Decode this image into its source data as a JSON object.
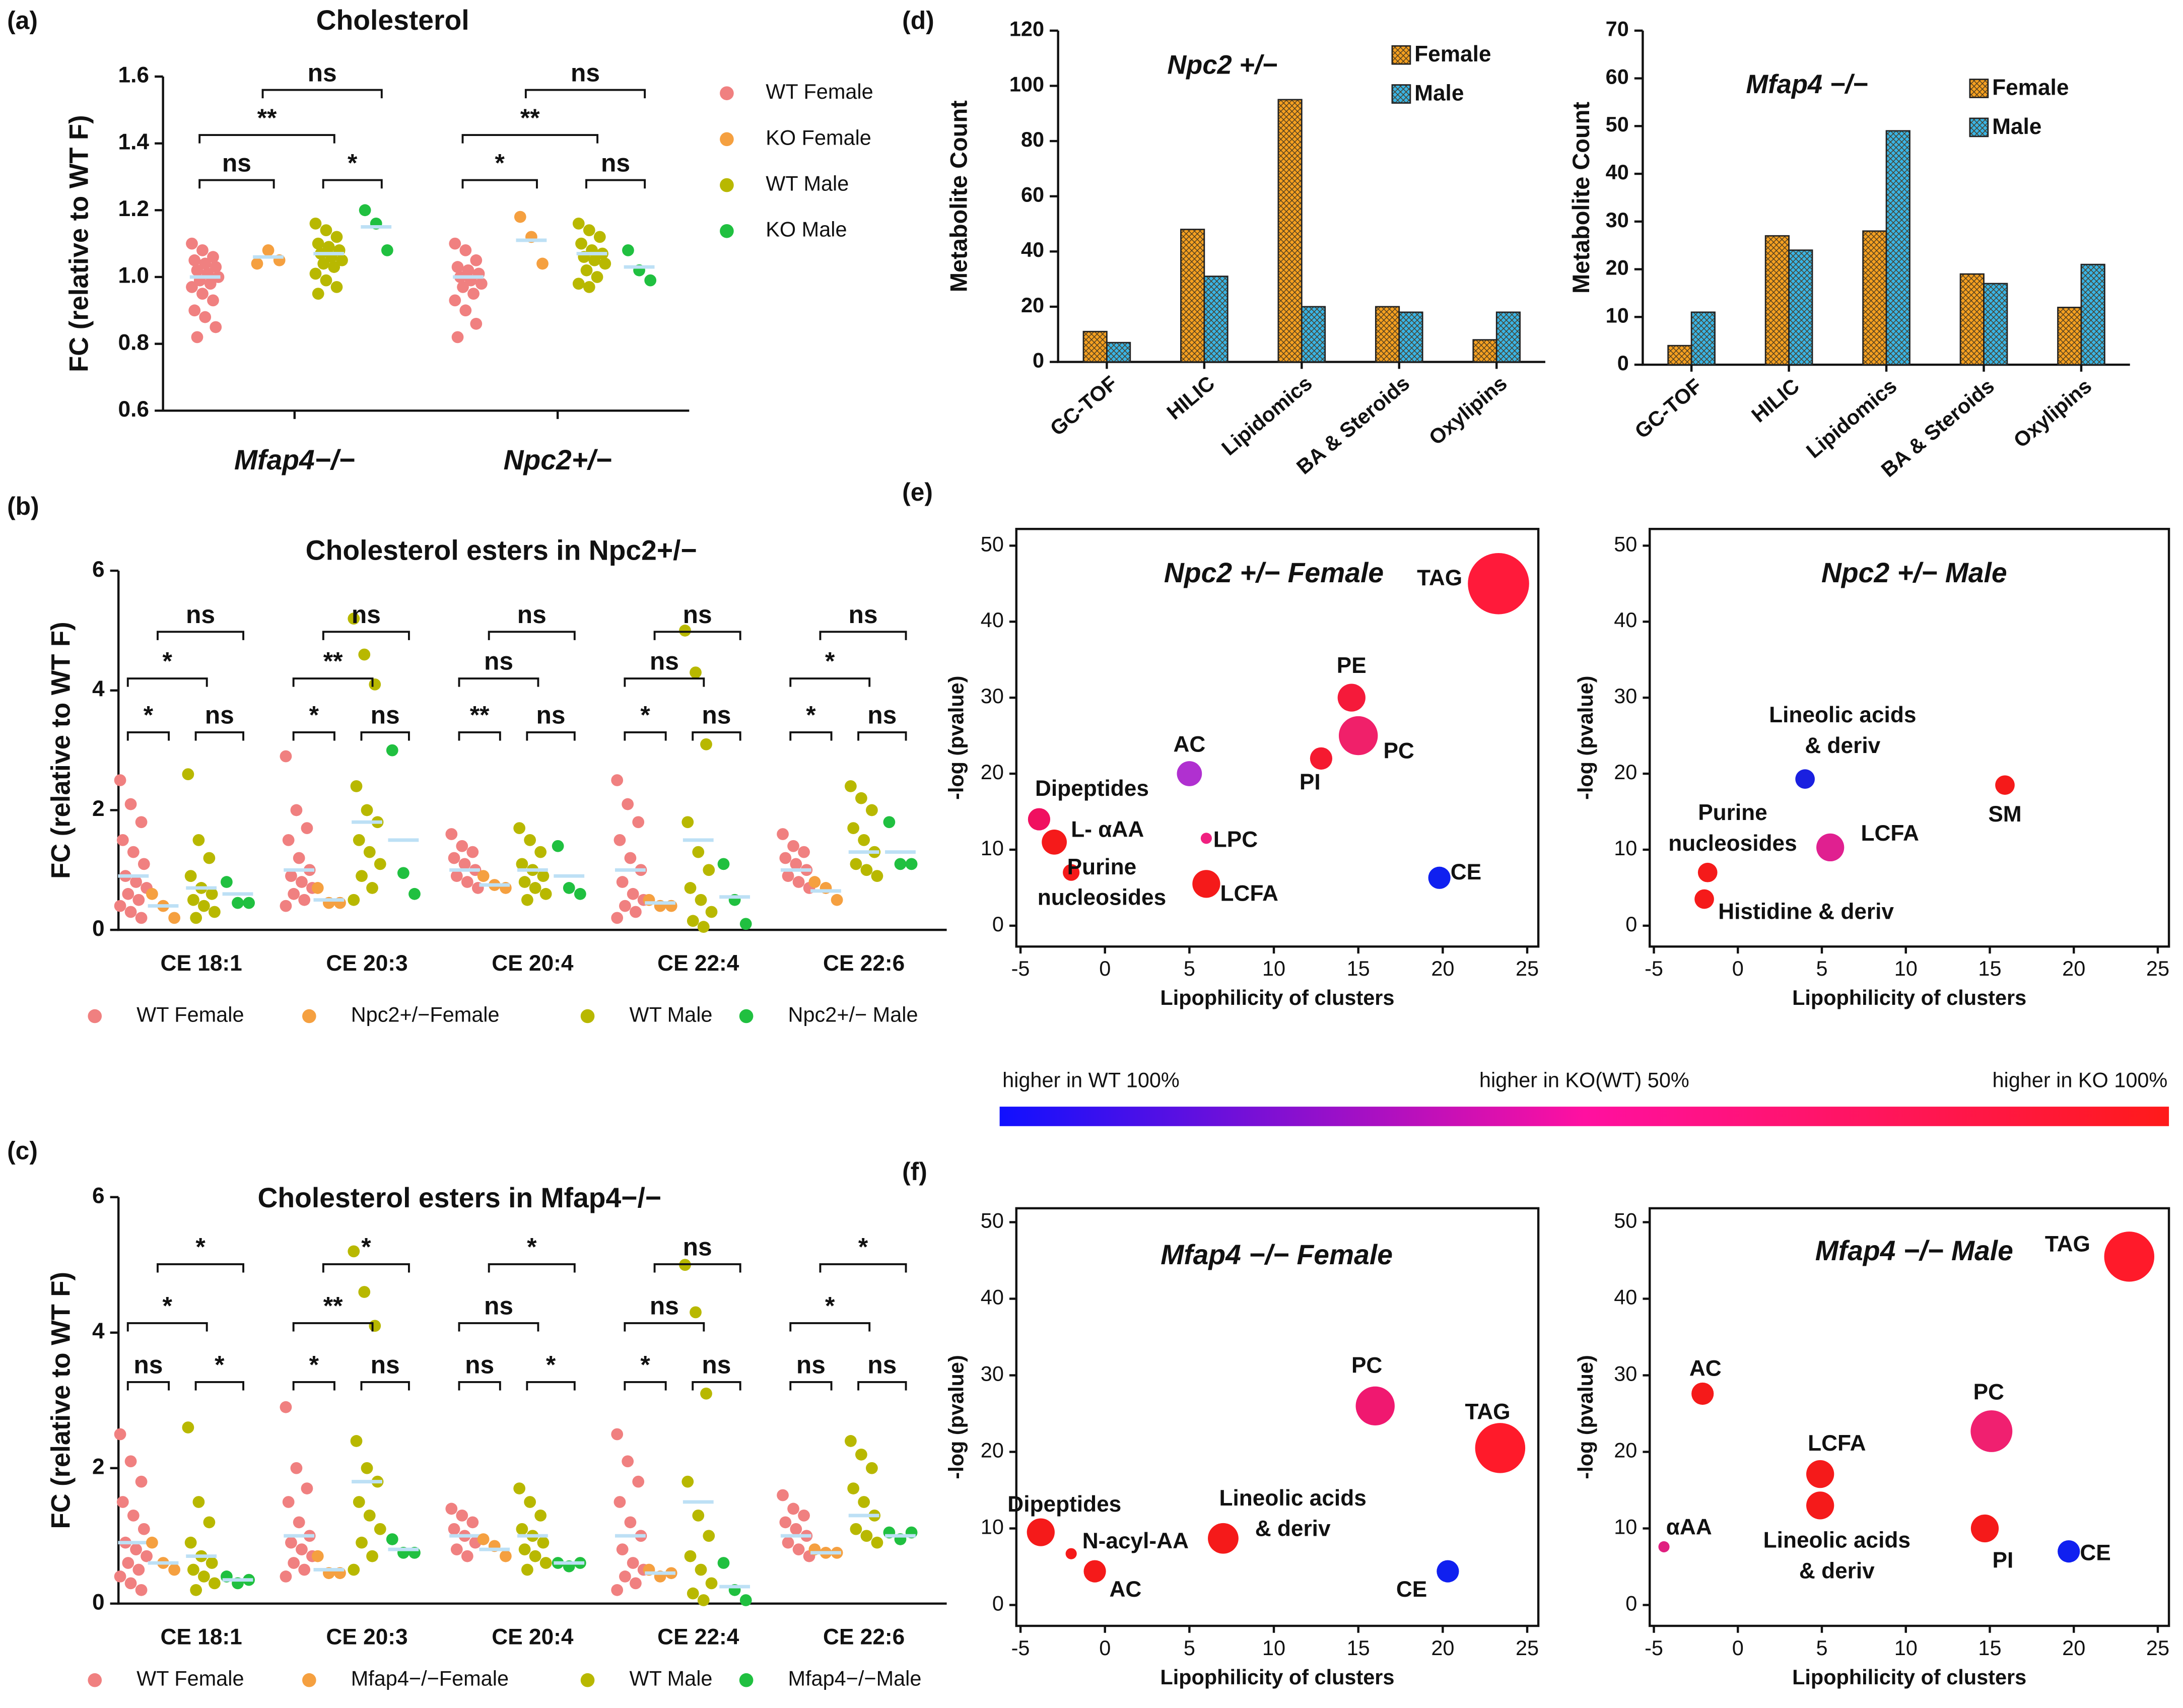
{
  "chart_data": [
    {
      "type": "strip",
      "panel": "(a)",
      "title": "Cholesterol",
      "ylabel": "FC (relative to WT F)",
      "categories": [
        "Mfap4−/−",
        "Npc2+/−"
      ],
      "ylim": [
        0.6,
        1.6
      ],
      "yticks": [
        0.6,
        0.8,
        {
          "value": 1,
          "label": "1.0"
        },
        1.2,
        1.4,
        1.6
      ],
      "series": [
        {
          "name": "WT Female",
          "color": "#f08080",
          "values": [
            [
              1.1,
              1.08,
              1.06,
              1.05,
              1.04,
              1.03,
              1.02,
              1.01,
              1.0,
              0.99,
              0.98,
              0.97,
              0.95,
              0.93,
              0.9,
              0.88,
              0.85,
              0.82
            ],
            [
              1.1,
              1.08,
              1.05,
              1.03,
              1.02,
              1.01,
              1.0,
              0.99,
              0.98,
              0.97,
              0.95,
              0.93,
              0.9,
              0.86,
              0.82
            ]
          ],
          "means": [
            1.0,
            1.0
          ]
        },
        {
          "name": "KO Female",
          "color": "#f5a040",
          "values": [
            [
              1.04,
              1.08,
              1.05
            ],
            [
              1.18,
              1.12,
              1.04
            ]
          ],
          "means": [
            1.06,
            1.11
          ]
        },
        {
          "name": "WT Male",
          "color": "#b8b800",
          "values": [
            [
              1.16,
              1.14,
              1.12,
              1.1,
              1.09,
              1.08,
              1.07,
              1.06,
              1.05,
              1.04,
              1.03,
              1.01,
              0.99,
              0.97,
              0.95
            ],
            [
              1.16,
              1.14,
              1.12,
              1.1,
              1.08,
              1.07,
              1.06,
              1.05,
              1.04,
              1.02,
              1.0,
              0.98,
              0.97
            ]
          ],
          "means": [
            1.07,
            1.07
          ]
        },
        {
          "name": "KO Male",
          "color": "#20c040",
          "values": [
            [
              1.2,
              1.16,
              1.08
            ],
            [
              1.08,
              1.02,
              0.99
            ]
          ],
          "means": [
            1.15,
            1.03
          ]
        }
      ],
      "annotations": [
        [
          "ns",
          "*",
          "**",
          "ns"
        ],
        [
          "*",
          "ns",
          "**",
          "ns"
        ]
      ]
    },
    {
      "type": "strip",
      "panel": "(b)",
      "title": "Cholesterol esters in Npc2+/−",
      "ylabel": "FC (relative to WT F)",
      "categories": [
        "CE 18:1",
        "CE 20:3",
        "CE 20:4",
        "CE 22:4",
        "CE 22:6"
      ],
      "ylim": [
        0,
        6
      ],
      "yticks": [
        0,
        2,
        4,
        6
      ],
      "series": [
        {
          "name": "WT Female",
          "color": "#f08080",
          "values": [
            [
              2.5,
              2.1,
              1.8,
              1.5,
              1.3,
              1.1,
              0.9,
              0.8,
              0.7,
              0.6,
              0.5,
              0.4,
              0.3,
              0.2
            ],
            [
              2.9,
              2.0,
              1.7,
              1.5,
              1.2,
              1.0,
              0.9,
              0.8,
              0.7,
              0.6,
              0.5,
              0.4
            ],
            [
              1.6,
              1.4,
              1.3,
              1.2,
              1.1,
              1.0,
              0.9,
              0.8,
              0.7
            ],
            [
              2.5,
              2.1,
              1.8,
              1.5,
              1.2,
              1.0,
              0.8,
              0.6,
              0.5,
              0.4,
              0.3,
              0.2
            ],
            [
              1.6,
              1.4,
              1.3,
              1.2,
              1.1,
              1.0,
              0.9,
              0.8,
              0.7
            ]
          ],
          "means": [
            0.9,
            1.0,
            1.0,
            1.0,
            1.0
          ]
        },
        {
          "name": "Npc2+/−Female",
          "color": "#f5a040",
          "values": [
            [
              0.6,
              0.4,
              0.2
            ],
            [
              0.7,
              0.45,
              0.45
            ],
            [
              0.9,
              0.75,
              0.7
            ],
            [
              0.5,
              0.4,
              0.4
            ],
            [
              0.8,
              0.7,
              0.5
            ]
          ],
          "means": [
            0.4,
            0.5,
            0.75,
            0.45,
            0.65
          ]
        },
        {
          "name": "WT Male",
          "color": "#b8b800",
          "values": [
            [
              2.6,
              1.5,
              1.2,
              0.9,
              0.7,
              0.6,
              0.5,
              0.4,
              0.3,
              0.2
            ],
            [
              5.2,
              4.6,
              4.1,
              2.4,
              2.0,
              1.8,
              1.5,
              1.3,
              1.1,
              0.9,
              0.7,
              0.5
            ],
            [
              1.7,
              1.5,
              1.3,
              1.1,
              1.0,
              0.9,
              0.8,
              0.7,
              0.6,
              0.5
            ],
            [
              5.0,
              4.3,
              3.1,
              1.8,
              1.3,
              1.0,
              0.7,
              0.5,
              0.3,
              0.15,
              0.05
            ],
            [
              2.4,
              2.2,
              2.0,
              1.7,
              1.5,
              1.3,
              1.1,
              1.0,
              0.9
            ]
          ],
          "means": [
            0.7,
            1.8,
            1.0,
            1.5,
            1.3
          ]
        },
        {
          "name": "Npc2+/− Male",
          "color": "#20c040",
          "values": [
            [
              0.8,
              0.45,
              0.45
            ],
            [
              3.0,
              0.95,
              0.6
            ],
            [
              1.4,
              0.7,
              0.6
            ],
            [
              1.1,
              0.5,
              0.1
            ],
            [
              1.8,
              1.1,
              1.1
            ]
          ],
          "means": [
            0.6,
            1.5,
            0.9,
            0.55,
            1.3
          ]
        }
      ],
      "annotations": [
        [
          "*",
          "ns",
          "*",
          "ns"
        ],
        [
          "*",
          "ns",
          "**",
          "ns"
        ],
        [
          "**",
          "ns",
          "ns",
          "ns"
        ],
        [
          "*",
          "ns",
          "ns",
          "ns"
        ],
        [
          "*",
          "ns",
          "*",
          "ns"
        ]
      ]
    },
    {
      "type": "strip",
      "panel": "(c)",
      "title": "Cholesterol esters in Mfap4−/−",
      "ylabel": "FC (relative to WT F)",
      "categories": [
        "CE 18:1",
        "CE 20:3",
        "CE 20:4",
        "CE 22:4",
        "CE 22:6"
      ],
      "ylim": [
        0,
        6
      ],
      "yticks": [
        0,
        2,
        4,
        6
      ],
      "series": [
        {
          "name": "WT Female",
          "color": "#f08080",
          "values": [
            [
              2.5,
              2.1,
              1.8,
              1.5,
              1.3,
              1.1,
              0.9,
              0.8,
              0.7,
              0.6,
              0.5,
              0.4,
              0.3,
              0.2
            ],
            [
              2.9,
              2.0,
              1.7,
              1.5,
              1.2,
              1.0,
              0.9,
              0.8,
              0.7,
              0.6,
              0.5,
              0.4
            ],
            [
              1.4,
              1.3,
              1.2,
              1.1,
              1.0,
              0.9,
              0.8,
              0.7
            ],
            [
              2.5,
              2.1,
              1.8,
              1.5,
              1.2,
              1.0,
              0.8,
              0.6,
              0.5,
              0.4,
              0.3,
              0.2
            ],
            [
              1.6,
              1.4,
              1.3,
              1.2,
              1.1,
              1.0,
              0.9,
              0.8,
              0.7
            ]
          ],
          "means": [
            0.9,
            1.0,
            1.0,
            1.0,
            1.0
          ]
        },
        {
          "name": "Mfap4−/−Female",
          "color": "#f5a040",
          "values": [
            [
              0.9,
              0.6,
              0.5
            ],
            [
              0.7,
              0.45,
              0.45
            ],
            [
              0.95,
              0.85,
              0.7
            ],
            [
              0.5,
              0.4,
              0.45
            ],
            [
              0.8,
              0.75,
              0.75
            ]
          ],
          "means": [
            0.6,
            0.5,
            0.8,
            0.45,
            0.75
          ]
        },
        {
          "name": "WT Male",
          "color": "#b8b800",
          "values": [
            [
              2.6,
              1.5,
              1.2,
              0.9,
              0.7,
              0.6,
              0.5,
              0.4,
              0.3,
              0.2
            ],
            [
              5.2,
              4.6,
              4.1,
              2.4,
              2.0,
              1.8,
              1.5,
              1.3,
              1.1,
              0.9,
              0.7,
              0.5
            ],
            [
              1.7,
              1.5,
              1.3,
              1.1,
              1.0,
              0.9,
              0.8,
              0.7,
              0.6,
              0.5
            ],
            [
              5.0,
              4.3,
              3.1,
              1.8,
              1.3,
              1.0,
              0.7,
              0.5,
              0.3,
              0.15,
              0.05
            ],
            [
              2.4,
              2.2,
              2.0,
              1.7,
              1.5,
              1.3,
              1.1,
              1.0,
              0.9
            ]
          ],
          "means": [
            0.7,
            1.8,
            1.0,
            1.5,
            1.3
          ]
        },
        {
          "name": "Mfap4−/−Male",
          "color": "#20c040",
          "values": [
            [
              0.4,
              0.3,
              0.35
            ],
            [
              0.95,
              0.75,
              0.75
            ],
            [
              0.6,
              0.55,
              0.6
            ],
            [
              0.6,
              0.2,
              0.05
            ],
            [
              1.05,
              0.95,
              1.05
            ]
          ],
          "means": [
            0.35,
            0.8,
            0.6,
            0.25,
            1.0
          ]
        }
      ],
      "annotations": [
        [
          "ns",
          "*",
          "*",
          "*"
        ],
        [
          "*",
          "ns",
          "**",
          "*"
        ],
        [
          "ns",
          "*",
          "ns",
          "*"
        ],
        [
          "*",
          "ns",
          "ns",
          "ns"
        ],
        [
          "ns",
          "ns",
          "*",
          "*"
        ]
      ]
    },
    {
      "type": "bar",
      "panel": "(d)",
      "title": "Npc2 +/−",
      "ylabel": "Metabolite Count",
      "categories": [
        "GC-TOF",
        "HILIC",
        "Lipidomics",
        "BA & Steroids",
        "Oxylipins"
      ],
      "ylim": [
        0,
        120
      ],
      "yticks": [
        0,
        20,
        40,
        60,
        80,
        100,
        120
      ],
      "series": [
        {
          "name": "Female",
          "color": "#f5a020",
          "values": [
            11,
            48,
            95,
            20,
            8
          ]
        },
        {
          "name": "Male",
          "color": "#38b4e6",
          "values": [
            7,
            31,
            20,
            18,
            18
          ]
        }
      ]
    },
    {
      "type": "bar",
      "title": "Mfap4 −/−",
      "ylabel": "Metabolite Count",
      "categories": [
        "GC-TOF",
        "HILIC",
        "Lipidomics",
        "BA & Steroids",
        "Oxylipins"
      ],
      "ylim": [
        0,
        70
      ],
      "yticks": [
        0,
        10,
        20,
        30,
        40,
        50,
        60,
        70
      ],
      "series": [
        {
          "name": "Female",
          "color": "#f5a020",
          "values": [
            4,
            27,
            28,
            19,
            12
          ]
        },
        {
          "name": "Male",
          "color": "#38b4e6",
          "values": [
            11,
            24,
            49,
            17,
            21
          ]
        }
      ]
    },
    {
      "type": "bubble",
      "panel": "(e)",
      "title": "Npc2 +/− Female",
      "xlabel": "Lipophilicity of clusters",
      "ylabel": "-log (pvalue)",
      "xlim": [
        -5,
        25
      ],
      "ylim": [
        0,
        50
      ],
      "xticks": [
        -5,
        0,
        5,
        10,
        15,
        20,
        25
      ],
      "yticks": [
        0,
        10,
        20,
        30,
        40,
        50
      ],
      "labels": [
        "TAG",
        "PE",
        "PC",
        "PI",
        "AC",
        "Dipeptides",
        "L- αAA",
        "LPC",
        [
          "Purine",
          "nucleosides"
        ],
        "LCFA",
        "CE"
      ],
      "x": [
        23.3,
        14.6,
        15,
        12.8,
        5,
        -3.9,
        -3,
        6,
        -2,
        6,
        19.8
      ],
      "y": [
        45,
        30,
        25,
        22,
        20,
        14,
        11,
        11.5,
        7,
        5.5,
        6.3
      ],
      "sizes": [
        22,
        10,
        14,
        8,
        9,
        8,
        9,
        4,
        6,
        10,
        8
      ],
      "colors": [
        "#ff1a3a",
        "#f51a3a",
        "#f0206a",
        "#f51a30",
        "#b030d0",
        "#f01060",
        "#f51a1a",
        "#f02080",
        "#f51a1a",
        "#f51a1a",
        "#1020f0"
      ]
    },
    {
      "type": "bubble",
      "title": "Npc2 +/− Male",
      "xlabel": "Lipophilicity of clusters",
      "ylabel": "-log (pvalue)",
      "xlim": [
        -5,
        25
      ],
      "ylim": [
        0,
        50
      ],
      "xticks": [
        -5,
        0,
        5,
        10,
        15,
        20,
        25
      ],
      "yticks": [
        0,
        10,
        20,
        30,
        40,
        50
      ],
      "labels": [
        [
          "Lineolic acids",
          "& deriv"
        ],
        "SM",
        [
          "Purine",
          "nucleosides"
        ],
        "LCFA",
        "Histidine & deriv"
      ],
      "x": [
        4,
        15.9,
        -1.8,
        5.5,
        -2
      ],
      "y": [
        19.3,
        18.5,
        7,
        10.3,
        3.5
      ],
      "sizes": [
        7,
        7,
        7,
        10,
        7
      ],
      "colors": [
        "#1a20e0",
        "#f51a1a",
        "#f51a1a",
        "#e02090",
        "#f51a1a"
      ]
    },
    {
      "type": "bubble",
      "panel": "(f)",
      "title": "Mfap4 −/− Female",
      "xlabel": "Lipophilicity of clusters",
      "ylabel": "-log (pvalue)",
      "xlim": [
        -5,
        25
      ],
      "ylim": [
        0,
        50
      ],
      "xticks": [
        -5,
        0,
        5,
        10,
        15,
        20,
        25
      ],
      "yticks": [
        0,
        10,
        20,
        30,
        40,
        50
      ],
      "labels": [
        "PC",
        "TAG",
        [
          "Lineolic acids",
          "& deriv"
        ],
        "CE",
        "Dipeptides",
        "N-acyl-AA",
        "AC"
      ],
      "x": [
        16,
        23.4,
        7,
        20.3,
        -3.8,
        -2,
        -0.6
      ],
      "y": [
        26,
        20.5,
        8.7,
        4.4,
        9.5,
        6.7,
        4.4
      ],
      "sizes": [
        14,
        18,
        11,
        8,
        10,
        4,
        8
      ],
      "colors": [
        "#f01870",
        "#ff1a2a",
        "#f51a1a",
        "#1020f0",
        "#f51a1a",
        "#f51a1a",
        "#f51a1a"
      ]
    },
    {
      "type": "bubble",
      "title": "Mfap4 −/− Male",
      "xlabel": "Lipophilicity of clusters",
      "ylabel": "-log (pvalue)",
      "xlim": [
        -5,
        25
      ],
      "ylim": [
        0,
        50
      ],
      "xticks": [
        -5,
        0,
        5,
        10,
        15,
        20,
        25
      ],
      "yticks": [
        0,
        10,
        20,
        30,
        40,
        50
      ],
      "labels": [
        "TAG",
        "AC",
        "PC",
        "LCFA",
        [
          "Lineolic acids",
          "& deriv"
        ],
        "PI",
        "αAA",
        "CE"
      ],
      "x": [
        23.3,
        -2.1,
        15.1,
        4.9,
        4.9,
        14.7,
        -4.4,
        19.7
      ],
      "y": [
        45.5,
        27.6,
        22.7,
        17.1,
        13,
        10,
        7.6,
        7
      ],
      "sizes": [
        18,
        8,
        15,
        10,
        10,
        10,
        4,
        8
      ],
      "colors": [
        "#ff1a2a",
        "#f51a1a",
        "#f02070",
        "#f51a1a",
        "#f51a1a",
        "#f51a1a",
        "#e02080",
        "#1020f0"
      ]
    }
  ],
  "colorbar": {
    "labels": [
      "higher in WT 100%",
      "higher in KO(WT) 50%",
      "higher in KO 100%"
    ],
    "colors": [
      "#1010ff",
      "#ff10a0",
      "#ff1a1a"
    ]
  }
}
